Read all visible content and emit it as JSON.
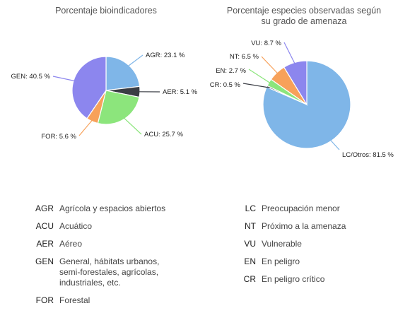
{
  "chart_data": [
    {
      "type": "pie",
      "title": "Porcentaje bioindicadores",
      "slices": [
        {
          "code": "AGR",
          "value": 23.1,
          "label": "AGR: 23.1 %",
          "color": "#7fb6e8"
        },
        {
          "code": "AER",
          "value": 5.1,
          "label": "AER: 5.1 %",
          "color": "#3a3d44"
        },
        {
          "code": "ACU",
          "value": 25.7,
          "label": "ACU: 25.7 %",
          "color": "#8ce57c"
        },
        {
          "code": "FOR",
          "value": 5.6,
          "label": "FOR: 5.6 %",
          "color": "#f7a15a"
        },
        {
          "code": "GEN",
          "value": 40.5,
          "label": "GEN: 40.5 %",
          "color": "#8c86ee"
        }
      ]
    },
    {
      "type": "pie",
      "title": "Porcentaje especies observadas según su grado de amenaza",
      "title_lines": [
        "Porcentaje especies observadas según",
        "su grado de amenaza"
      ],
      "slices": [
        {
          "code": "LC/Otros",
          "value": 81.5,
          "label": "LC/Otros: 81.5 %",
          "color": "#7fb6e8"
        },
        {
          "code": "CR",
          "value": 0.5,
          "label": "CR: 0.5 %",
          "color": "#3a3d44"
        },
        {
          "code": "EN",
          "value": 2.7,
          "label": "EN: 2.7 %",
          "color": "#8ce57c"
        },
        {
          "code": "NT",
          "value": 6.5,
          "label": "NT: 6.5 %",
          "color": "#f7a15a"
        },
        {
          "code": "VU",
          "value": 8.7,
          "label": "VU: 8.7 %",
          "color": "#8c86ee"
        }
      ]
    }
  ],
  "legend_left": [
    {
      "code": "AGR",
      "desc": "Agrícola y espacios abiertos"
    },
    {
      "code": "ACU",
      "desc": "Acuático"
    },
    {
      "code": "AER",
      "desc": "Aéreo"
    },
    {
      "code": "GEN",
      "desc_lines": [
        "General, hábitats urbanos,",
        "semi-forestales, agrícolas,",
        "industriales, etc."
      ]
    },
    {
      "code": "FOR",
      "desc": "Forestal"
    }
  ],
  "legend_right": [
    {
      "code": "LC",
      "desc": "Preocupación menor"
    },
    {
      "code": "NT",
      "desc": "Próximo a la amenaza"
    },
    {
      "code": "VU",
      "desc": "Vulnerable"
    },
    {
      "code": "EN",
      "desc": "En peligro"
    },
    {
      "code": "CR",
      "desc": "En peligro crítico"
    }
  ]
}
